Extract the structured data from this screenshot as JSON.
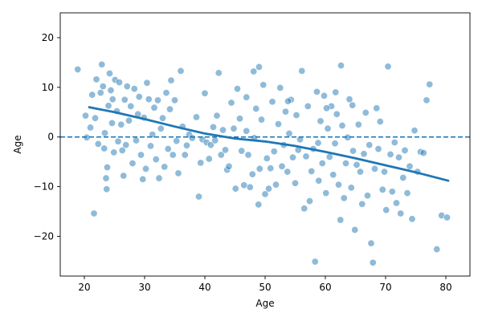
{
  "chart_data": {
    "type": "scatter",
    "title": "",
    "xlabel": "Age",
    "ylabel": "Age",
    "xlim": [
      16,
      84
    ],
    "ylim": [
      -28,
      25
    ],
    "x_ticks": [
      20,
      30,
      40,
      50,
      60,
      70,
      80
    ],
    "y_ticks": [
      -20,
      -10,
      0,
      10,
      20
    ],
    "grid": false,
    "colors": {
      "points": "#1f77b4",
      "trend": "#1f77b4",
      "reference_line": "#1f77b4"
    },
    "reference_line": {
      "y": 0,
      "style": "dashed"
    },
    "trend_line": {
      "x": [
        20.8,
        25,
        30,
        35,
        40,
        45,
        50,
        55,
        60,
        65,
        70,
        75,
        80.4
      ],
      "y": [
        6.0,
        5.0,
        3.6,
        2.1,
        0.7,
        -0.3,
        -0.9,
        -1.8,
        -3.0,
        -4.3,
        -5.7,
        -7.1,
        -8.8
      ]
    },
    "points": [
      [
        18.9,
        13.6
      ],
      [
        20.2,
        4.3
      ],
      [
        20.4,
        -0.1
      ],
      [
        21.0,
        1.9
      ],
      [
        21.3,
        8.5
      ],
      [
        21.6,
        -15.4
      ],
      [
        21.8,
        3.8
      ],
      [
        22.0,
        11.6
      ],
      [
        22.3,
        -1.4
      ],
      [
        22.7,
        8.9
      ],
      [
        22.9,
        14.6
      ],
      [
        23.1,
        10.2
      ],
      [
        23.3,
        -2.3
      ],
      [
        23.4,
        0.8
      ],
      [
        23.6,
        -8.3
      ],
      [
        23.7,
        -10.5
      ],
      [
        23.8,
        -6.1
      ],
      [
        24.0,
        6.3
      ],
      [
        24.2,
        12.8
      ],
      [
        24.4,
        9.4
      ],
      [
        24.6,
        2.8
      ],
      [
        24.7,
        7.6
      ],
      [
        24.9,
        -3.1
      ],
      [
        25.1,
        11.5
      ],
      [
        25.4,
        5.2
      ],
      [
        25.6,
        -0.9
      ],
      [
        25.8,
        11.0
      ],
      [
        26.1,
        2.5
      ],
      [
        26.3,
        -2.7
      ],
      [
        26.5,
        -7.8
      ],
      [
        26.7,
        7.5
      ],
      [
        26.9,
        -1.6
      ],
      [
        27.1,
        10.2
      ],
      [
        27.4,
        3.3
      ],
      [
        27.7,
        6.2
      ],
      [
        28.0,
        -5.3
      ],
      [
        28.3,
        9.7
      ],
      [
        28.6,
        -0.7
      ],
      [
        28.9,
        4.6
      ],
      [
        29.1,
        8.1
      ],
      [
        29.4,
        -3.6
      ],
      [
        29.7,
        -8.5
      ],
      [
        29.9,
        3.9
      ],
      [
        30.2,
        -6.4
      ],
      [
        30.4,
        10.9
      ],
      [
        30.7,
        7.6
      ],
      [
        31.0,
        -1.8
      ],
      [
        31.3,
        0.5
      ],
      [
        31.6,
        5.9
      ],
      [
        31.9,
        -4.5
      ],
      [
        32.2,
        7.4
      ],
      [
        32.4,
        -8.3
      ],
      [
        32.7,
        1.7
      ],
      [
        33.0,
        3.8
      ],
      [
        33.3,
        -6.0
      ],
      [
        33.6,
        8.9
      ],
      [
        33.9,
        -2.4
      ],
      [
        34.2,
        5.6
      ],
      [
        34.4,
        11.4
      ],
      [
        34.7,
        -3.6
      ],
      [
        35.0,
        7.4
      ],
      [
        35.3,
        -0.8
      ],
      [
        35.6,
        -7.3
      ],
      [
        36.0,
        13.3
      ],
      [
        36.3,
        2.1
      ],
      [
        36.7,
        -3.6
      ],
      [
        37.0,
        -1.7
      ],
      [
        37.4,
        0.5
      ],
      [
        37.9,
        -0.2
      ],
      [
        38.6,
        4.0
      ],
      [
        39.0,
        -12.0
      ],
      [
        39.3,
        -5.2
      ],
      [
        39.6,
        -0.5
      ],
      [
        40.0,
        8.8
      ],
      [
        40.3,
        -1.1
      ],
      [
        40.7,
        -4.4
      ],
      [
        41.0,
        -1.6
      ],
      [
        41.4,
        2.0
      ],
      [
        41.7,
        -0.7
      ],
      [
        42.0,
        4.3
      ],
      [
        42.3,
        12.9
      ],
      [
        42.7,
        -3.6
      ],
      [
        43.0,
        1.4
      ],
      [
        43.4,
        -2.6
      ],
      [
        43.7,
        -6.6
      ],
      [
        44.0,
        -5.9
      ],
      [
        44.4,
        6.9
      ],
      [
        44.8,
        1.7
      ],
      [
        45.1,
        -10.4
      ],
      [
        45.4,
        9.7
      ],
      [
        45.8,
        3.7
      ],
      [
        46.1,
        -2.8
      ],
      [
        46.5,
        -9.7
      ],
      [
        46.9,
        1.2
      ],
      [
        47.2,
        -3.6
      ],
      [
        47.5,
        -10.1
      ],
      [
        47.9,
        -7.5
      ],
      [
        48.2,
        -0.2
      ],
      [
        48.5,
        5.7
      ],
      [
        48.9,
        -13.6
      ],
      [
        49.1,
        -6.4
      ],
      [
        49.4,
        3.5
      ],
      [
        49.7,
        10.5
      ],
      [
        50.0,
        -11.5
      ],
      [
        50.3,
        -4.3
      ],
      [
        50.6,
        -10.4
      ],
      [
        50.9,
        -6.3
      ],
      [
        51.2,
        7.1
      ],
      [
        51.5,
        -2.9
      ],
      [
        51.8,
        -9.6
      ],
      [
        52.2,
        2.6
      ],
      [
        52.5,
        9.9
      ],
      [
        52.8,
        -5.9
      ],
      [
        53.1,
        -1.6
      ],
      [
        53.4,
        5.1
      ],
      [
        53.7,
        -7.0
      ],
      [
        54.0,
        0.7
      ],
      [
        54.3,
        7.5
      ],
      [
        54.6,
        -4.1
      ],
      [
        55.0,
        -9.3
      ],
      [
        55.2,
        4.4
      ],
      [
        55.5,
        -2.6
      ],
      [
        55.8,
        -0.5
      ],
      [
        56.1,
        13.3
      ],
      [
        56.5,
        -14.4
      ],
      [
        56.8,
        -3.9
      ],
      [
        57.1,
        6.2
      ],
      [
        57.4,
        -12.9
      ],
      [
        57.7,
        -6.9
      ],
      [
        58.0,
        -2.4
      ],
      [
        58.3,
        -25.1
      ],
      [
        58.6,
        9.1
      ],
      [
        58.9,
        -8.8
      ],
      [
        59.2,
        3.2
      ],
      [
        59.5,
        -5.3
      ],
      [
        59.8,
        8.3
      ],
      [
        60.1,
        -11.3
      ],
      [
        60.4,
        1.7
      ],
      [
        60.7,
        -4.0
      ],
      [
        61.0,
        6.2
      ],
      [
        61.3,
        -7.6
      ],
      [
        61.6,
        -1.3
      ],
      [
        61.9,
        4.6
      ],
      [
        62.2,
        -9.6
      ],
      [
        62.5,
        -16.7
      ],
      [
        62.8,
        2.3
      ],
      [
        63.1,
        -12.3
      ],
      [
        63.4,
        -5.3
      ],
      [
        63.7,
        -0.1
      ],
      [
        64.0,
        7.6
      ],
      [
        64.3,
        -10.2
      ],
      [
        64.6,
        -2.8
      ],
      [
        64.9,
        -18.7
      ],
      [
        65.2,
        -5.6
      ],
      [
        65.5,
        2.5
      ],
      [
        65.8,
        -7.0
      ],
      [
        66.1,
        -13.5
      ],
      [
        66.4,
        -3.4
      ],
      [
        66.7,
        4.9
      ],
      [
        67.0,
        -11.8
      ],
      [
        67.3,
        -1.6
      ],
      [
        67.6,
        -21.4
      ],
      [
        67.9,
        -25.3
      ],
      [
        68.2,
        -6.4
      ],
      [
        68.5,
        5.8
      ],
      [
        68.8,
        -2.4
      ],
      [
        69.1,
        3.1
      ],
      [
        69.5,
        -10.6
      ],
      [
        69.8,
        -7.0
      ],
      [
        70.1,
        -14.7
      ],
      [
        70.4,
        14.2
      ],
      [
        70.8,
        -3.5
      ],
      [
        71.1,
        -11.0
      ],
      [
        71.5,
        -1.1
      ],
      [
        71.8,
        -13.3
      ],
      [
        72.2,
        -4.1
      ],
      [
        72.5,
        -15.4
      ],
      [
        72.9,
        -8.2
      ],
      [
        73.2,
        -2.7
      ],
      [
        73.6,
        -11.3
      ],
      [
        74.0,
        -5.9
      ],
      [
        74.4,
        -16.5
      ],
      [
        74.8,
        1.3
      ],
      [
        75.3,
        -7.0
      ],
      [
        75.8,
        -3.0
      ],
      [
        76.3,
        -3.2
      ],
      [
        76.8,
        7.4
      ],
      [
        77.3,
        10.6
      ],
      [
        78.5,
        -22.6
      ],
      [
        79.3,
        -15.8
      ],
      [
        80.2,
        -16.2
      ],
      [
        62.6,
        14.4
      ],
      [
        60.2,
        5.8
      ],
      [
        61.7,
        9.0
      ],
      [
        64.5,
        6.4
      ],
      [
        58.8,
        -1.2
      ],
      [
        53.8,
        7.2
      ],
      [
        46.9,
        8.0
      ],
      [
        48.1,
        13.2
      ],
      [
        49.0,
        14.1
      ]
    ]
  }
}
